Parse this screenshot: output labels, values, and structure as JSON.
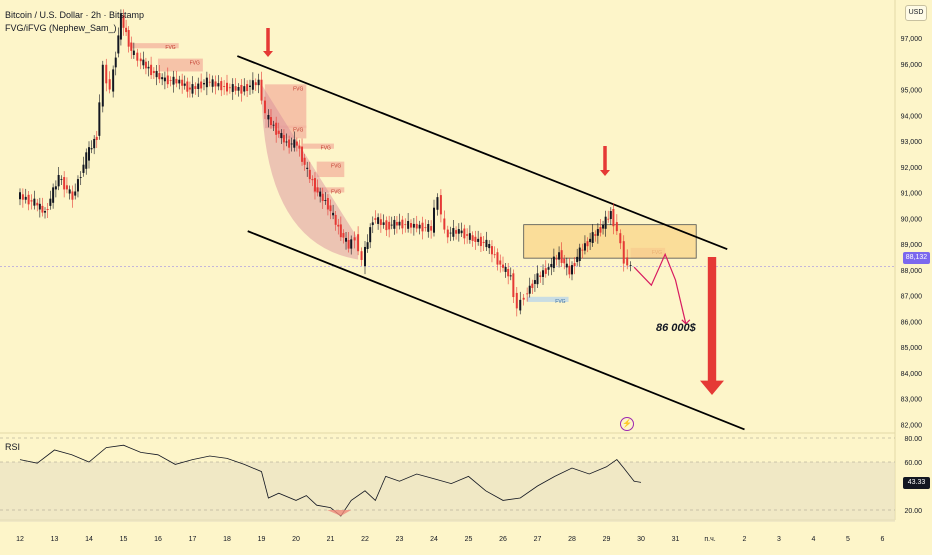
{
  "header": {
    "title": "Bitcoin / U.S. Dollar · 2h · Bitstamp",
    "indicator": "FVG/iFVG (Nephew_Sam_)"
  },
  "currency": "USD",
  "rsi": {
    "label": "RSI",
    "value": "43.33",
    "levels": [
      80.0,
      60.0,
      20.0
    ]
  },
  "last_price": "88,132",
  "target_label": "86 000$",
  "icons": {
    "lightning": "lightning-icon",
    "arrow": "arrow-down-icon"
  },
  "colors": {
    "background": "#fdf5c9",
    "up": "#131722",
    "down": "#e53935",
    "fvg_bear": "#f4b6a0",
    "fvg_bull": "#bcd7ea",
    "zone": "#f9d58a",
    "arrow": "#e53935",
    "last_price": "#7b68ee"
  },
  "chart_data": {
    "type": "candlestick",
    "symbol": "Bitcoin / U.S. Dollar",
    "timeframe": "2h",
    "exchange": "Bitstamp",
    "y_ticks": [
      "97,000",
      "96,000",
      "95,000",
      "94,000",
      "93,000",
      "92,000",
      "91,000",
      "90,000",
      "89,000",
      "88,000",
      "87,000",
      "86,000",
      "85,000",
      "84,000",
      "83,000",
      "82,000"
    ],
    "ylim": [
      81600,
      97800
    ],
    "x_ticks": [
      "12",
      "13",
      "14",
      "15",
      "16",
      "17",
      "18",
      "19",
      "20",
      "21",
      "22",
      "23",
      "24",
      "25",
      "26",
      "27",
      "28",
      "29",
      "30",
      "31",
      "п.ч.",
      "2",
      "3",
      "4",
      "5",
      "6"
    ],
    "price_path": [
      {
        "x": 0,
        "y": 90.9
      },
      {
        "x": 0.5,
        "y": 90.6
      },
      {
        "x": 0.8,
        "y": 90.2
      },
      {
        "x": 1.2,
        "y": 91.6
      },
      {
        "x": 1.6,
        "y": 90.8
      },
      {
        "x": 2.0,
        "y": 92.4
      },
      {
        "x": 2.3,
        "y": 93.2
      },
      {
        "x": 2.5,
        "y": 95.8
      },
      {
        "x": 2.7,
        "y": 95.0
      },
      {
        "x": 3.0,
        "y": 97.8
      },
      {
        "x": 3.3,
        "y": 96.5
      },
      {
        "x": 3.5,
        "y": 96.2
      },
      {
        "x": 3.8,
        "y": 95.8
      },
      {
        "x": 4.2,
        "y": 95.4
      },
      {
        "x": 4.7,
        "y": 95.3
      },
      {
        "x": 5.0,
        "y": 95.0
      },
      {
        "x": 5.5,
        "y": 95.3
      },
      {
        "x": 6.0,
        "y": 95.1
      },
      {
        "x": 6.5,
        "y": 95.0
      },
      {
        "x": 7.0,
        "y": 95.3
      },
      {
        "x": 7.2,
        "y": 94.0
      },
      {
        "x": 7.5,
        "y": 93.4
      },
      {
        "x": 7.8,
        "y": 92.9
      },
      {
        "x": 8.1,
        "y": 92.9
      },
      {
        "x": 8.4,
        "y": 91.8
      },
      {
        "x": 8.7,
        "y": 91.0
      },
      {
        "x": 9.0,
        "y": 90.5
      },
      {
        "x": 9.3,
        "y": 89.6
      },
      {
        "x": 9.6,
        "y": 88.9
      },
      {
        "x": 9.8,
        "y": 89.3
      },
      {
        "x": 10.0,
        "y": 88.3
      },
      {
        "x": 10.3,
        "y": 90.0
      },
      {
        "x": 10.7,
        "y": 89.7
      },
      {
        "x": 11.0,
        "y": 89.8
      },
      {
        "x": 11.5,
        "y": 89.7
      },
      {
        "x": 12.0,
        "y": 89.6
      },
      {
        "x": 12.2,
        "y": 90.9
      },
      {
        "x": 12.4,
        "y": 89.4
      },
      {
        "x": 12.8,
        "y": 89.5
      },
      {
        "x": 13.2,
        "y": 89.2
      },
      {
        "x": 13.6,
        "y": 89.0
      },
      {
        "x": 14.0,
        "y": 88.2
      },
      {
        "x": 14.3,
        "y": 87.7
      },
      {
        "x": 14.5,
        "y": 86.5
      },
      {
        "x": 14.7,
        "y": 87.0
      },
      {
        "x": 15.0,
        "y": 87.6
      },
      {
        "x": 15.4,
        "y": 88.1
      },
      {
        "x": 15.7,
        "y": 88.6
      },
      {
        "x": 16.0,
        "y": 87.9
      },
      {
        "x": 16.3,
        "y": 88.7
      },
      {
        "x": 16.6,
        "y": 89.2
      },
      {
        "x": 16.9,
        "y": 89.6
      },
      {
        "x": 17.2,
        "y": 90.2
      },
      {
        "x": 17.4,
        "y": 89.5
      },
      {
        "x": 17.6,
        "y": 88.4
      },
      {
        "x": 17.8,
        "y": 88.1
      }
    ],
    "trendlines": [
      {
        "name": "channel-upper",
        "x0": 6.3,
        "y0": 96.3,
        "x1": 20.5,
        "y1": 88.8
      },
      {
        "name": "channel-lower",
        "x0": 6.6,
        "y0": 89.5,
        "x1": 21.0,
        "y1": 81.8
      }
    ],
    "zones": [
      {
        "type": "FVG",
        "label": "FVG",
        "x0": 3.2,
        "x1": 4.6,
        "y0": 96.8,
        "y1": 96.6,
        "color": "#f4b6a0"
      },
      {
        "type": "FVG",
        "label": "FVG",
        "x0": 4.0,
        "x1": 5.3,
        "y0": 96.2,
        "y1": 95.7,
        "color": "#f4b6a0"
      },
      {
        "type": "FVG",
        "label": "FVG",
        "x0": 7.1,
        "x1": 8.3,
        "y0": 95.2,
        "y1": 93.5,
        "color": "#f4b6a0"
      },
      {
        "type": "FVG",
        "label": "FVG",
        "x0": 7.5,
        "x1": 8.3,
        "y0": 93.6,
        "y1": 93.1,
        "color": "#f4b6a0"
      },
      {
        "type": "FVG",
        "label": "FVG",
        "x0": 8.2,
        "x1": 9.1,
        "y0": 92.9,
        "y1": 92.7,
        "color": "#f4b6a0"
      },
      {
        "type": "FVG",
        "label": "FVG",
        "x0": 8.6,
        "x1": 9.4,
        "y0": 92.2,
        "y1": 91.6,
        "color": "#f4b6a0"
      },
      {
        "type": "FVG",
        "label": "FVG",
        "x0": 8.5,
        "x1": 9.4,
        "y0": 91.2,
        "y1": 91.0,
        "color": "#f4b6a0"
      },
      {
        "type": "FVG",
        "label": "FVG",
        "x0": 17.7,
        "x1": 18.7,
        "y0": 88.85,
        "y1": 88.45,
        "color": "#f4b6a0"
      },
      {
        "type": "FVG",
        "label": "FVG",
        "x0": 14.7,
        "x1": 15.9,
        "y0": 86.95,
        "y1": 86.75,
        "color": "#bcd7ea"
      },
      {
        "type": "resistance",
        "label": "",
        "x0": 14.6,
        "x1": 19.6,
        "y0": 89.75,
        "y1": 88.45,
        "color": "#f9d58a"
      }
    ],
    "projection": [
      {
        "x": 17.8,
        "y": 88.1
      },
      {
        "x": 18.3,
        "y": 87.4
      },
      {
        "x": 18.7,
        "y": 88.6
      },
      {
        "x": 19.0,
        "y": 87.6
      },
      {
        "x": 19.3,
        "y": 85.9
      }
    ],
    "target": 86000,
    "rsi_levels": [
      80,
      60,
      20
    ],
    "rsi_path": [
      {
        "x": 0,
        "y": 62
      },
      {
        "x": 0.5,
        "y": 59
      },
      {
        "x": 1.0,
        "y": 70
      },
      {
        "x": 1.5,
        "y": 66
      },
      {
        "x": 2.0,
        "y": 60
      },
      {
        "x": 2.5,
        "y": 72
      },
      {
        "x": 3.0,
        "y": 74
      },
      {
        "x": 3.5,
        "y": 68
      },
      {
        "x": 4.0,
        "y": 66
      },
      {
        "x": 4.5,
        "y": 58
      },
      {
        "x": 5.0,
        "y": 62
      },
      {
        "x": 5.5,
        "y": 65
      },
      {
        "x": 6.0,
        "y": 63
      },
      {
        "x": 6.5,
        "y": 58
      },
      {
        "x": 7.0,
        "y": 52
      },
      {
        "x": 7.2,
        "y": 30
      },
      {
        "x": 7.5,
        "y": 34
      },
      {
        "x": 8.0,
        "y": 28
      },
      {
        "x": 8.3,
        "y": 32
      },
      {
        "x": 8.6,
        "y": 24
      },
      {
        "x": 9.0,
        "y": 22
      },
      {
        "x": 9.3,
        "y": 15
      },
      {
        "x": 9.6,
        "y": 28
      },
      {
        "x": 10.0,
        "y": 36
      },
      {
        "x": 10.3,
        "y": 28
      },
      {
        "x": 10.6,
        "y": 48
      },
      {
        "x": 11.0,
        "y": 44
      },
      {
        "x": 11.5,
        "y": 50
      },
      {
        "x": 12.0,
        "y": 46
      },
      {
        "x": 12.5,
        "y": 42
      },
      {
        "x": 13.0,
        "y": 48
      },
      {
        "x": 13.5,
        "y": 36
      },
      {
        "x": 14.0,
        "y": 28
      },
      {
        "x": 14.5,
        "y": 30
      },
      {
        "x": 15.0,
        "y": 40
      },
      {
        "x": 15.5,
        "y": 48
      },
      {
        "x": 16.0,
        "y": 55
      },
      {
        "x": 16.5,
        "y": 50
      },
      {
        "x": 17.0,
        "y": 56
      },
      {
        "x": 17.3,
        "y": 62
      },
      {
        "x": 17.5,
        "y": 55
      },
      {
        "x": 17.8,
        "y": 44
      },
      {
        "x": 18.0,
        "y": 43
      }
    ]
  }
}
